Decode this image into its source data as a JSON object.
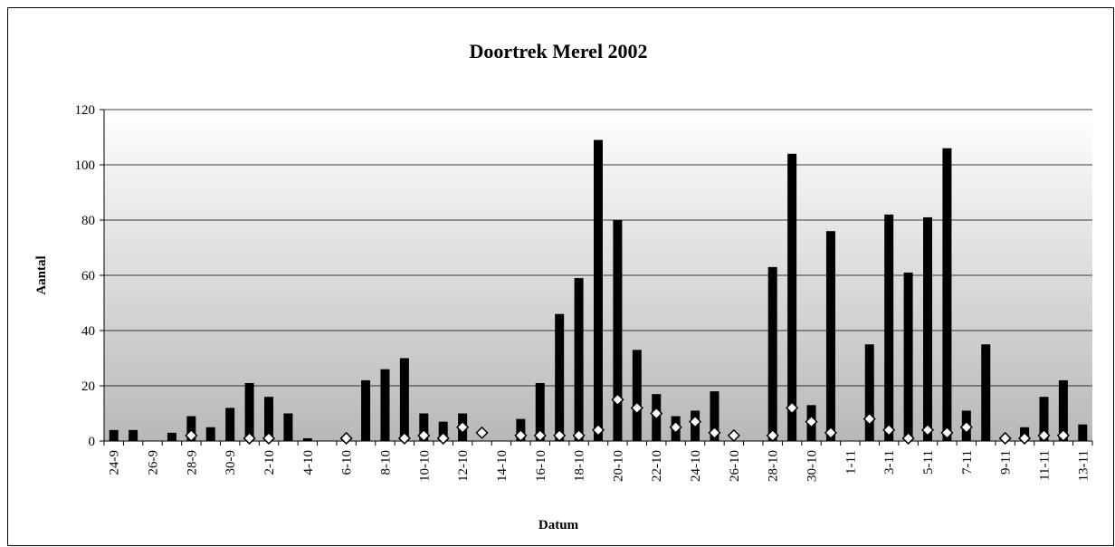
{
  "chart_data": {
    "type": "bar",
    "title": "Doortrek Merel 2002",
    "x_label": "Datum",
    "y_label": "Aantal",
    "categories": [
      "24-9",
      null,
      "26-9",
      null,
      "28-9",
      null,
      "30-9",
      null,
      "2-10",
      null,
      "4-10",
      null,
      "6-10",
      null,
      "8-10",
      null,
      "10-10",
      null,
      "12-10",
      null,
      "14-10",
      null,
      "16-10",
      null,
      "18-10",
      null,
      "20-10",
      null,
      "22-10",
      null,
      "24-10",
      null,
      "26-10",
      null,
      "28-10",
      null,
      "30-10",
      null,
      "1-11",
      null,
      "3-11",
      null,
      "5-11",
      null,
      "7-11",
      null,
      "9-11",
      null,
      "11-11",
      null,
      "13-11"
    ],
    "series": [
      {
        "type": "bar",
        "color": "#000000",
        "values": [
          4,
          4,
          0,
          3,
          9,
          5,
          12,
          21,
          16,
          10,
          1,
          0,
          0,
          22,
          26,
          30,
          10,
          7,
          10,
          0,
          0,
          8,
          21,
          46,
          59,
          109,
          80,
          33,
          17,
          9,
          11,
          18,
          0,
          0,
          63,
          104,
          13,
          76,
          0,
          35,
          82,
          61,
          81,
          106,
          11,
          35,
          0,
          5,
          16,
          22,
          6
        ]
      },
      {
        "type": "scatter",
        "color": "#ffffff",
        "values": [
          null,
          null,
          null,
          null,
          2,
          null,
          null,
          1,
          1,
          null,
          null,
          null,
          1,
          null,
          null,
          1,
          2,
          1,
          5,
          3,
          null,
          2,
          2,
          2,
          2,
          4,
          15,
          12,
          10,
          5,
          7,
          3,
          2,
          null,
          2,
          12,
          7,
          3,
          null,
          8,
          4,
          1,
          4,
          3,
          5,
          null,
          1,
          1,
          2,
          2,
          null
        ]
      }
    ],
    "ylim": [
      0,
      120
    ],
    "yticks": [
      0,
      20,
      40,
      60,
      80,
      100,
      120
    ],
    "grid": true
  }
}
